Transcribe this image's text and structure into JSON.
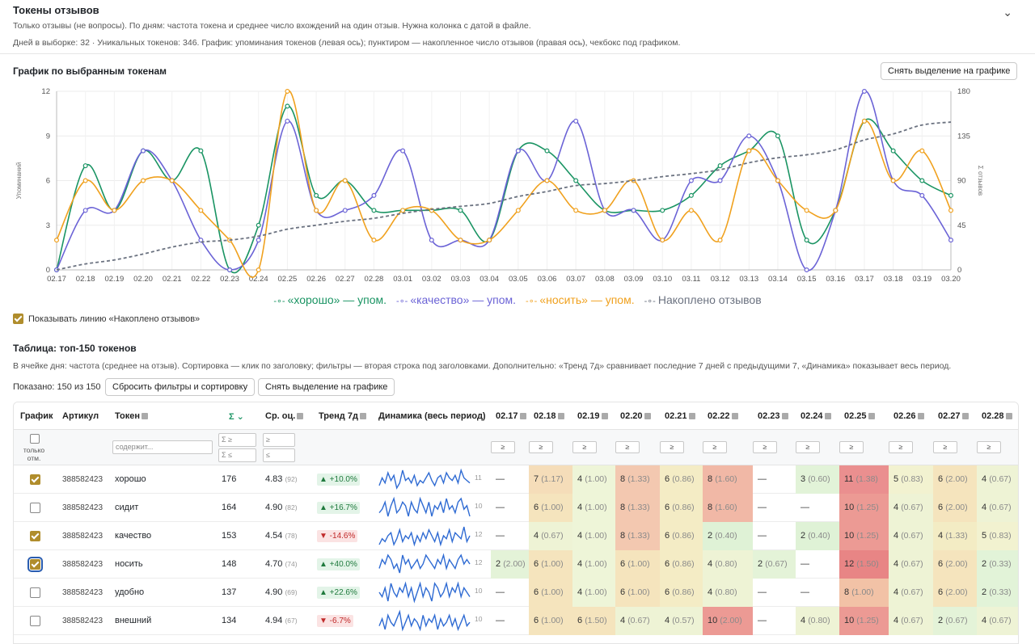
{
  "header": {
    "title": "Токены отзывов",
    "subtitle": "Только отзывы (не вопросы). По дням: частота токена и среднее число вхождений на один отзыв. Нужна колонка с датой в файле.",
    "stats": "Дней в выборке: 32 · Уникальных токенов: 346. График: упоминания токенов (левая ось); пунктиром — накопленное число отзывов (правая ось), чекбокс под графиком."
  },
  "chart_section": {
    "title": "График по выбранным токенам",
    "clear_button": "Снять выделение на графике",
    "show_cumulative_label": "Показывать линию «Накоплено отзывов»",
    "show_cumulative_checked": true
  },
  "chart_data": {
    "type": "line",
    "ylabel": "Упоминаний",
    "y2label": "Σ отзывов",
    "ylim": [
      0,
      12
    ],
    "y2lim": [
      0,
      180
    ],
    "yticks": [
      0,
      3,
      6,
      9,
      12
    ],
    "y2ticks": [
      0,
      45,
      90,
      135,
      180
    ],
    "x": [
      "02.17",
      "02.18",
      "02.19",
      "02.20",
      "02.21",
      "02.22",
      "02.23",
      "02.24",
      "02.25",
      "02.26",
      "02.27",
      "02.28",
      "03.01",
      "03.02",
      "03.03",
      "03.04",
      "03.05",
      "03.06",
      "03.07",
      "03.08",
      "03.09",
      "03.10",
      "03.11",
      "03.12",
      "03.13",
      "03.14",
      "03.15",
      "03.16",
      "03.17",
      "03.18",
      "03.19",
      "03.20"
    ],
    "legend_position": "bottom",
    "series": [
      {
        "name": "«хорошо» — упом.",
        "color": "#1a9463",
        "axis": "left",
        "values": [
          0,
          7,
          4,
          8,
          6,
          8,
          0,
          3,
          11,
          5,
          6,
          4,
          4,
          4,
          4,
          2,
          8,
          8,
          6,
          4,
          4,
          4,
          5,
          7,
          8,
          9,
          2,
          4,
          10,
          8,
          6,
          5
        ]
      },
      {
        "name": "«качество» — упом.",
        "color": "#6b63d6",
        "axis": "left",
        "values": [
          0,
          4,
          4,
          8,
          6,
          2,
          0,
          2,
          10,
          4,
          4,
          5,
          8,
          2,
          2,
          2,
          8,
          6,
          10,
          4,
          4,
          2,
          6,
          6,
          9,
          6,
          0,
          4,
          12,
          6,
          5,
          2
        ]
      },
      {
        "name": "«носить» — упом.",
        "color": "#f0a11e",
        "axis": "left",
        "values": [
          2,
          6,
          4,
          6,
          6,
          4,
          2,
          0,
          12,
          4,
          6,
          2,
          4,
          4,
          2,
          2,
          4,
          6,
          4,
          4,
          6,
          2,
          4,
          2,
          8,
          6,
          4,
          4,
          10,
          6,
          8,
          4
        ]
      },
      {
        "name": "Накоплено отзывов",
        "color": "#6b7280",
        "axis": "right",
        "dashed": true,
        "values": [
          0,
          6,
          10,
          16,
          23,
          28,
          30,
          34,
          41,
          45,
          49,
          52,
          57,
          61,
          64,
          67,
          74,
          79,
          85,
          87,
          90,
          94,
          97,
          101,
          108,
          113,
          116,
          121,
          131,
          137,
          146,
          149
        ]
      }
    ]
  },
  "table_section": {
    "title": "Таблица: топ-150 токенов",
    "description": "В ячейке дня: частота (среднее на отзыв). Сортировка — клик по заголовку; фильтры — вторая строка под заголовками. Дополнительно: «Тренд 7д» сравнивает последние 7 дней с предыдущими 7, «Динамика» показывает весь период.",
    "shown": "Показано: 150 из 150",
    "reset_button": "Сбросить фильтры и сортировку",
    "clear_button": "Снять выделение на графике",
    "columns": {
      "chart": "График",
      "article": "Артикул",
      "token": "Токен",
      "sum": "Σ",
      "rating": "Ср. оц.",
      "trend": "Тренд 7д",
      "dynamics": "Динамика (весь период)",
      "days": [
        "02.17",
        "02.18",
        "02.19",
        "02.20",
        "02.21",
        "02.22",
        "02.23",
        "02.24",
        "02.25",
        "02.26",
        "02.27",
        "02.28"
      ]
    },
    "filters": {
      "only_selected": "только отм.",
      "token_placeholder": "содержит...",
      "sum_ge": "Σ ≥",
      "sum_le": "Σ ≤",
      "rating_ge": "≥",
      "rating_le": "≤",
      "day_filter": "≥"
    },
    "rows": [
      {
        "checked": true,
        "article": "388582423",
        "token": "хорошо",
        "sum": "176",
        "rating": "4.83",
        "rating_count": "(92)",
        "trend": "▲ +10.0%",
        "trend_dir": "up",
        "spark_max": "11",
        "spark": [
          2,
          5,
          3,
          7,
          4,
          6,
          1,
          3,
          8,
          4,
          5,
          3,
          6,
          2,
          4,
          3,
          5,
          7,
          4,
          2,
          5,
          6,
          3,
          7,
          5,
          4,
          6,
          3,
          8,
          5,
          4,
          3
        ],
        "cells": [
          {
            "t": "—"
          },
          {
            "t": "7",
            "m": "(1.17)",
            "bg": "#f5ddb9"
          },
          {
            "t": "4",
            "m": "(1.00)",
            "bg": "#eef5d8"
          },
          {
            "t": "8",
            "m": "(1.33)",
            "bg": "#f3c8b0"
          },
          {
            "t": "6",
            "m": "(0.86)",
            "bg": "#f4ecc5"
          },
          {
            "t": "8",
            "m": "(1.60)",
            "bg": "#f1b8a6"
          },
          {
            "t": "—"
          },
          {
            "t": "3",
            "m": "(0.60)",
            "bg": "#e2f3d8"
          },
          {
            "t": "11",
            "m": "(1.38)",
            "bg": "#ea8f8f"
          },
          {
            "t": "5",
            "m": "(0.83)",
            "bg": "#f2f2d0"
          },
          {
            "t": "6",
            "m": "(2.00)",
            "bg": "#f5e4bd"
          },
          {
            "t": "4",
            "m": "(0.67)",
            "bg": "#eef3d5"
          }
        ]
      },
      {
        "checked": false,
        "article": "388582423",
        "token": "сидит",
        "sum": "164",
        "rating": "4.90",
        "rating_count": "(82)",
        "trend": "▲ +16.7%",
        "trend_dir": "up",
        "spark_max": "10",
        "spark": [
          3,
          4,
          6,
          2,
          5,
          7,
          3,
          4,
          6,
          5,
          2,
          6,
          4,
          3,
          7,
          5,
          3,
          6,
          2,
          5,
          4,
          6,
          3,
          7,
          4,
          5,
          3,
          6,
          7,
          4,
          5,
          2
        ],
        "cells": [
          {
            "t": "—"
          },
          {
            "t": "6",
            "m": "(1.00)",
            "bg": "#f5e4bd"
          },
          {
            "t": "4",
            "m": "(1.00)",
            "bg": "#eef5d8"
          },
          {
            "t": "8",
            "m": "(1.33)",
            "bg": "#f3c8b0"
          },
          {
            "t": "6",
            "m": "(0.86)",
            "bg": "#f4ecc5"
          },
          {
            "t": "8",
            "m": "(1.60)",
            "bg": "#f1b8a6"
          },
          {
            "t": "—"
          },
          {
            "t": "—"
          },
          {
            "t": "10",
            "m": "(1.25)",
            "bg": "#ec9a94"
          },
          {
            "t": "4",
            "m": "(0.67)",
            "bg": "#eef3d5"
          },
          {
            "t": "6",
            "m": "(2.00)",
            "bg": "#f5e4bd"
          },
          {
            "t": "4",
            "m": "(0.67)",
            "bg": "#eef3d5"
          }
        ]
      },
      {
        "checked": true,
        "article": "388582423",
        "token": "качество",
        "sum": "153",
        "rating": "4.54",
        "rating_count": "(78)",
        "trend": "▼ -14.6%",
        "trend_dir": "down",
        "spark_max": "12",
        "spark": [
          2,
          4,
          3,
          5,
          6,
          2,
          4,
          7,
          3,
          5,
          4,
          6,
          2,
          5,
          3,
          6,
          4,
          7,
          5,
          3,
          6,
          2,
          5,
          4,
          7,
          3,
          6,
          5,
          4,
          8,
          3,
          5
        ],
        "cells": [
          {
            "t": "—"
          },
          {
            "t": "4",
            "m": "(0.67)",
            "bg": "#eef3d5"
          },
          {
            "t": "4",
            "m": "(1.00)",
            "bg": "#eef5d8"
          },
          {
            "t": "8",
            "m": "(1.33)",
            "bg": "#f3c8b0"
          },
          {
            "t": "6",
            "m": "(0.86)",
            "bg": "#f4ecc5"
          },
          {
            "t": "2",
            "m": "(0.40)",
            "bg": "#dff2d6"
          },
          {
            "t": "—"
          },
          {
            "t": "2",
            "m": "(0.40)",
            "bg": "#dff2d6"
          },
          {
            "t": "10",
            "m": "(1.25)",
            "bg": "#ec9a94"
          },
          {
            "t": "4",
            "m": "(0.67)",
            "bg": "#eef3d5"
          },
          {
            "t": "4",
            "m": "(1.33)",
            "bg": "#f3ecc4"
          },
          {
            "t": "5",
            "m": "(0.83)",
            "bg": "#f2f2d0"
          }
        ]
      },
      {
        "checked": true,
        "focused": true,
        "article": "388582423",
        "token": "носить",
        "sum": "148",
        "rating": "4.70",
        "rating_count": "(74)",
        "trend": "▲ +40.0%",
        "trend_dir": "up",
        "spark_max": "12",
        "spark": [
          3,
          5,
          4,
          6,
          5,
          3,
          4,
          2,
          6,
          4,
          5,
          3,
          4,
          5,
          3,
          4,
          6,
          5,
          4,
          3,
          5,
          4,
          6,
          3,
          5,
          4,
          3,
          5,
          6,
          4,
          5,
          4
        ],
        "cells": [
          {
            "t": "2",
            "m": "(2.00)",
            "bg": "#e4f3d8"
          },
          {
            "t": "6",
            "m": "(1.00)",
            "bg": "#f5e4bd"
          },
          {
            "t": "4",
            "m": "(1.00)",
            "bg": "#eef5d8"
          },
          {
            "t": "6",
            "m": "(1.00)",
            "bg": "#f5e4bd"
          },
          {
            "t": "6",
            "m": "(0.86)",
            "bg": "#f4ecc5"
          },
          {
            "t": "4",
            "m": "(0.80)",
            "bg": "#eef3d5"
          },
          {
            "t": "2",
            "m": "(0.67)",
            "bg": "#e4f3d8"
          },
          {
            "t": "—"
          },
          {
            "t": "12",
            "m": "(1.50)",
            "bg": "#e88585"
          },
          {
            "t": "4",
            "m": "(0.67)",
            "bg": "#eef3d5"
          },
          {
            "t": "6",
            "m": "(2.00)",
            "bg": "#f5e4bd"
          },
          {
            "t": "2",
            "m": "(0.33)",
            "bg": "#e2f3d8"
          }
        ]
      },
      {
        "checked": false,
        "article": "388582423",
        "token": "удобно",
        "sum": "137",
        "rating": "4.90",
        "rating_count": "(69)",
        "trend": "▲ +22.6%",
        "trend_dir": "up",
        "spark_max": "10",
        "spark": [
          4,
          3,
          5,
          2,
          6,
          4,
          3,
          5,
          4,
          6,
          3,
          5,
          2,
          4,
          6,
          3,
          5,
          4,
          2,
          6,
          5,
          3,
          4,
          6,
          3,
          5,
          4,
          6,
          3,
          5,
          4,
          3
        ],
        "cells": [
          {
            "t": "—"
          },
          {
            "t": "6",
            "m": "(1.00)",
            "bg": "#f5e4bd"
          },
          {
            "t": "4",
            "m": "(1.00)",
            "bg": "#eef5d8"
          },
          {
            "t": "6",
            "m": "(1.00)",
            "bg": "#f5e4bd"
          },
          {
            "t": "6",
            "m": "(0.86)",
            "bg": "#f4ecc5"
          },
          {
            "t": "4",
            "m": "(0.80)",
            "bg": "#eef3d5"
          },
          {
            "t": "—"
          },
          {
            "t": "—"
          },
          {
            "t": "8",
            "m": "(1.00)",
            "bg": "#f2c2a6"
          },
          {
            "t": "4",
            "m": "(0.67)",
            "bg": "#eef3d5"
          },
          {
            "t": "6",
            "m": "(2.00)",
            "bg": "#f5e4bd"
          },
          {
            "t": "2",
            "m": "(0.33)",
            "bg": "#e2f3d8"
          }
        ]
      },
      {
        "checked": false,
        "article": "388582423",
        "token": "внешний",
        "sum": "134",
        "rating": "4.94",
        "rating_count": "(67)",
        "trend": "▼ -6.7%",
        "trend_dir": "down",
        "spark_max": "10",
        "spark": [
          3,
          5,
          2,
          6,
          4,
          3,
          5,
          7,
          2,
          4,
          6,
          3,
          5,
          4,
          2,
          6,
          3,
          5,
          4,
          6,
          2,
          5,
          3,
          4,
          6,
          3,
          5,
          2,
          4,
          6,
          3,
          4
        ],
        "cells": [
          {
            "t": "—"
          },
          {
            "t": "6",
            "m": "(1.00)",
            "bg": "#f5e4bd"
          },
          {
            "t": "6",
            "m": "(1.50)",
            "bg": "#f5e4bd"
          },
          {
            "t": "4",
            "m": "(0.67)",
            "bg": "#eef3d5"
          },
          {
            "t": "4",
            "m": "(0.57)",
            "bg": "#eef3d5"
          },
          {
            "t": "10",
            "m": "(2.00)",
            "bg": "#ec9a94"
          },
          {
            "t": "—"
          },
          {
            "t": "4",
            "m": "(0.80)",
            "bg": "#eef3d5"
          },
          {
            "t": "10",
            "m": "(1.25)",
            "bg": "#ec9a94"
          },
          {
            "t": "4",
            "m": "(0.67)",
            "bg": "#eef3d5"
          },
          {
            "t": "2",
            "m": "(0.67)",
            "bg": "#e4f3d8"
          },
          {
            "t": "4",
            "m": "(0.67)",
            "bg": "#eef3d5"
          }
        ]
      }
    ]
  },
  "icons": {
    "collapse": "chevron-down-icon",
    "sort": "sort-icon",
    "sort_active": "sort-desc-icon"
  }
}
